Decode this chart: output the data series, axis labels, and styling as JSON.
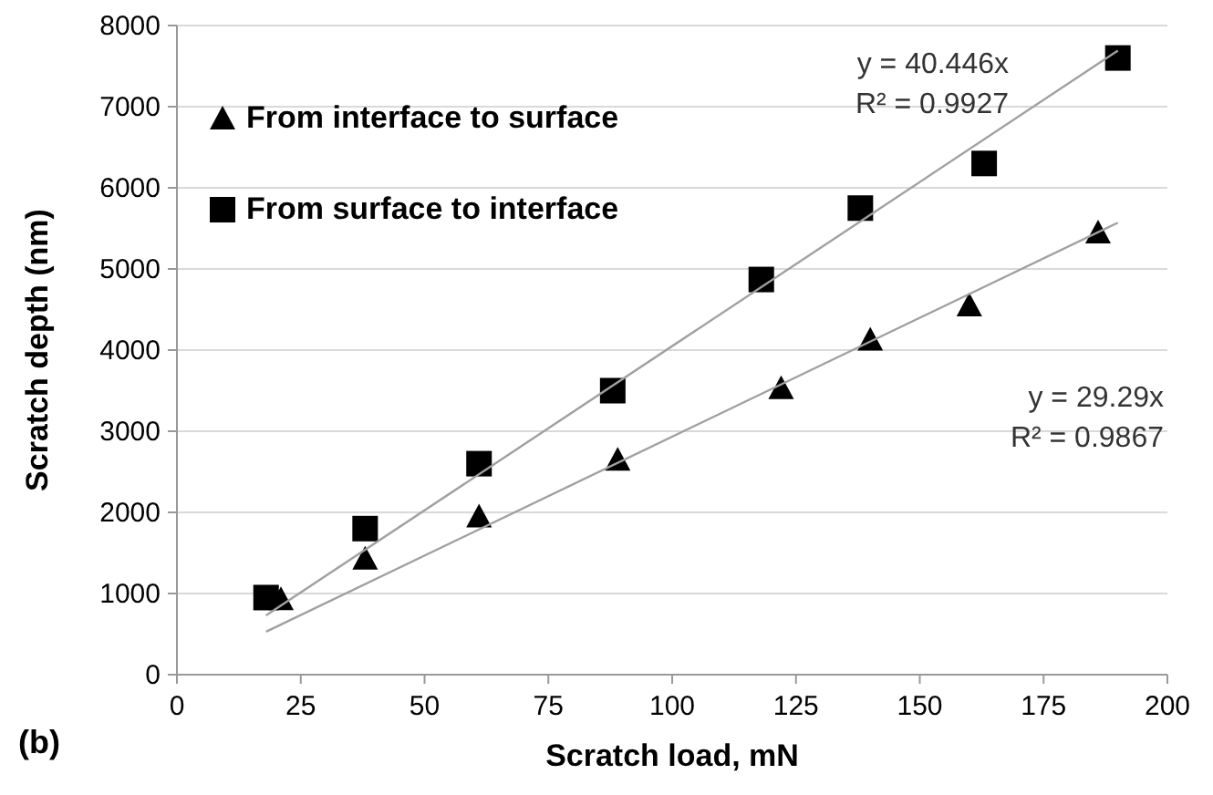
{
  "chart_data": {
    "type": "scatter",
    "xlabel": "Scratch load, mN",
    "ylabel": "Scratch depth (nm)",
    "xlim": [
      0,
      200
    ],
    "xticks": [
      0,
      25,
      50,
      75,
      100,
      125,
      150,
      175,
      200
    ],
    "ylim": [
      0,
      8000
    ],
    "yticks": [
      0,
      1000,
      2000,
      3000,
      4000,
      5000,
      6000,
      7000,
      8000
    ],
    "grid": "y",
    "legend": "top left",
    "series": [
      {
        "name": "From interface to surface",
        "color": "#000000",
        "marker": "triangle",
        "x": [
          21,
          38,
          61,
          89,
          122,
          140,
          160,
          186
        ],
        "values": [
          930,
          1430,
          1950,
          2650,
          3530,
          4130,
          4550,
          5450
        ]
      },
      {
        "name": "From surface to interface",
        "color": "#000000",
        "marker": "square",
        "x": [
          18,
          38,
          61,
          88,
          118,
          138,
          163,
          190
        ],
        "values": [
          950,
          1800,
          2600,
          3500,
          4870,
          5750,
          6300,
          7600
        ]
      },
      {
        "type": "line",
        "color": "#a0a0a0",
        "x": [
          18,
          190
        ],
        "values": [
          730,
          7690
        ]
      },
      {
        "type": "line",
        "color": "#a0a0a0",
        "x": [
          18,
          190
        ],
        "values": [
          530,
          5570
        ]
      }
    ],
    "annotations": [
      "y = 40.446x\nR² = 0.9927",
      "y = 29.29x\nR² = 0.9867",
      "(b)"
    ]
  }
}
